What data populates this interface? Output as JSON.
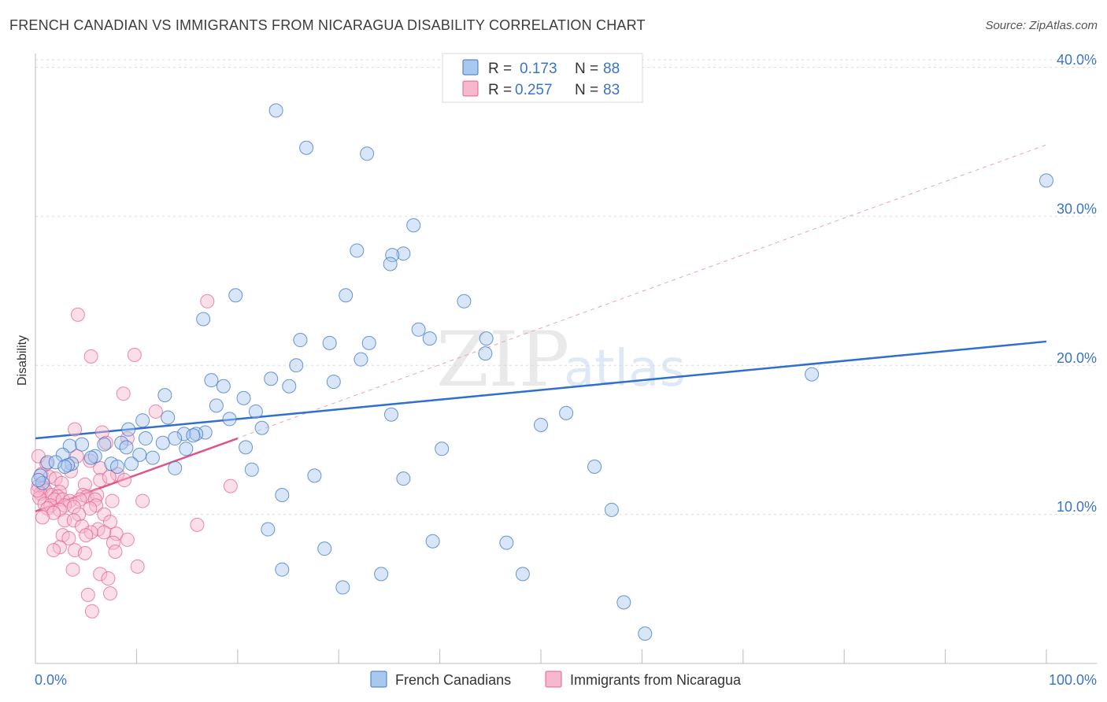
{
  "header": {
    "title": "FRENCH CANADIAN VS IMMIGRANTS FROM NICARAGUA DISABILITY CORRELATION CHART",
    "source": "Source: ZipAtlas.com"
  },
  "chart_data": {
    "type": "scatter",
    "title": "FRENCH CANADIAN VS IMMIGRANTS FROM NICARAGUA DISABILITY CORRELATION CHART",
    "xlabel": "",
    "ylabel": "Disability",
    "xlim": [
      0,
      100
    ],
    "ylim": [
      0,
      40.5
    ],
    "x_tick_labels": [
      "0.0%",
      "100.0%"
    ],
    "y_ticks": [
      10,
      20,
      30,
      40
    ],
    "y_tick_labels": [
      "10.0%",
      "20.0%",
      "30.0%",
      "40.0%"
    ],
    "grid": true,
    "legend_position": "top-center",
    "watermark": "ZIPatlas",
    "colors": {
      "blue": "#3a74c4",
      "blue_fill": "#a9c8f0",
      "pink": "#e8608e",
      "pink_fill": "#f6b8cc"
    },
    "stats": [
      {
        "r_label": "R =",
        "r": "0.173",
        "n_label": "N =",
        "n": "88"
      },
      {
        "r_label": "R =",
        "r": "0.257",
        "n_label": "N =",
        "n": "83"
      }
    ],
    "series": [
      {
        "name": "French Canadians",
        "color": "#3a74c4",
        "trend": {
          "x": [
            0,
            100
          ],
          "y": [
            15.1,
            21.6
          ],
          "style": "solid"
        },
        "points": [
          [
            23.8,
            37.1
          ],
          [
            26.8,
            34.6
          ],
          [
            32.8,
            34.2
          ],
          [
            100,
            32.4
          ],
          [
            37.4,
            29.4
          ],
          [
            31.8,
            27.7
          ],
          [
            36.4,
            27.5
          ],
          [
            35.3,
            27.4
          ],
          [
            35.1,
            26.8
          ],
          [
            19.8,
            24.7
          ],
          [
            30.7,
            24.7
          ],
          [
            42.4,
            24.3
          ],
          [
            16.6,
            23.1
          ],
          [
            37.9,
            22.4
          ],
          [
            39.0,
            21.8
          ],
          [
            26.2,
            21.7
          ],
          [
            29.1,
            21.5
          ],
          [
            33.0,
            21.5
          ],
          [
            44.6,
            21.8
          ],
          [
            44.5,
            20.8
          ],
          [
            32.2,
            20.4
          ],
          [
            25.8,
            20.0
          ],
          [
            76.8,
            19.4
          ],
          [
            23.3,
            19.1
          ],
          [
            17.4,
            19.0
          ],
          [
            29.5,
            18.9
          ],
          [
            18.6,
            18.6
          ],
          [
            25.1,
            18.6
          ],
          [
            12.8,
            18.0
          ],
          [
            20.6,
            17.8
          ],
          [
            17.9,
            17.3
          ],
          [
            21.8,
            16.9
          ],
          [
            35.2,
            16.7
          ],
          [
            52.5,
            16.8
          ],
          [
            13.1,
            16.5
          ],
          [
            19.2,
            16.4
          ],
          [
            10.6,
            16.3
          ],
          [
            50.0,
            16.0
          ],
          [
            22.4,
            15.8
          ],
          [
            9.2,
            15.7
          ],
          [
            16.8,
            15.5
          ],
          [
            14.7,
            15.4
          ],
          [
            15.9,
            15.4
          ],
          [
            15.6,
            15.3
          ],
          [
            13.8,
            15.1
          ],
          [
            10.9,
            15.1
          ],
          [
            6.8,
            14.7
          ],
          [
            12.6,
            14.8
          ],
          [
            3.4,
            14.6
          ],
          [
            4.6,
            14.7
          ],
          [
            8.5,
            14.8
          ],
          [
            9.0,
            14.5
          ],
          [
            20.8,
            14.5
          ],
          [
            40.2,
            14.4
          ],
          [
            14.9,
            14.4
          ],
          [
            5.9,
            13.9
          ],
          [
            10.3,
            14.0
          ],
          [
            2.7,
            14.0
          ],
          [
            5.5,
            13.8
          ],
          [
            11.6,
            13.8
          ],
          [
            1.2,
            13.5
          ],
          [
            2.0,
            13.5
          ],
          [
            3.6,
            13.4
          ],
          [
            7.5,
            13.4
          ],
          [
            9.5,
            13.4
          ],
          [
            3.2,
            13.3
          ],
          [
            2.9,
            13.2
          ],
          [
            8.1,
            13.2
          ],
          [
            55.3,
            13.2
          ],
          [
            13.8,
            13.1
          ],
          [
            21.4,
            13.0
          ],
          [
            0.5,
            12.6
          ],
          [
            27.6,
            12.6
          ],
          [
            36.4,
            12.4
          ],
          [
            0.7,
            12.1
          ],
          [
            24.4,
            11.3
          ],
          [
            57.0,
            10.3
          ],
          [
            23.0,
            9.0
          ],
          [
            39.3,
            8.2
          ],
          [
            28.6,
            7.7
          ],
          [
            46.6,
            8.1
          ],
          [
            24.4,
            6.3
          ],
          [
            34.2,
            6.0
          ],
          [
            48.2,
            6.0
          ],
          [
            30.4,
            5.1
          ],
          [
            58.2,
            4.1
          ],
          [
            60.3,
            2.0
          ],
          [
            0.3,
            12.3
          ]
        ]
      },
      {
        "name": "Immigrants from Nicaragua",
        "color": "#e8608e",
        "trend": {
          "x": [
            0,
            20
          ],
          "y": [
            10.2,
            15.1
          ],
          "style": "solid"
        },
        "trend_extended": {
          "x": [
            0,
            100
          ],
          "y": [
            10.2,
            34.8
          ],
          "style": "dashed"
        },
        "points": [
          [
            17.0,
            24.3
          ],
          [
            4.2,
            23.4
          ],
          [
            9.8,
            20.7
          ],
          [
            5.5,
            20.6
          ],
          [
            8.7,
            18.1
          ],
          [
            11.9,
            16.9
          ],
          [
            3.9,
            15.7
          ],
          [
            6.6,
            15.5
          ],
          [
            9.1,
            15.1
          ],
          [
            7.0,
            14.8
          ],
          [
            0.3,
            13.9
          ],
          [
            4.1,
            13.9
          ],
          [
            5.4,
            13.6
          ],
          [
            1.1,
            13.4
          ],
          [
            6.4,
            13.1
          ],
          [
            3.5,
            12.9
          ],
          [
            0.6,
            12.7
          ],
          [
            8.1,
            12.7
          ],
          [
            1.4,
            12.5
          ],
          [
            2.0,
            12.4
          ],
          [
            6.4,
            12.3
          ],
          [
            7.3,
            12.5
          ],
          [
            8.8,
            12.3
          ],
          [
            2.6,
            12.1
          ],
          [
            4.9,
            12.0
          ],
          [
            0.3,
            11.9
          ],
          [
            19.3,
            11.9
          ],
          [
            0.8,
            11.8
          ],
          [
            1.0,
            11.6
          ],
          [
            2.4,
            11.5
          ],
          [
            0.5,
            11.4
          ],
          [
            1.6,
            11.3
          ],
          [
            2.2,
            11.2
          ],
          [
            4.7,
            11.3
          ],
          [
            5.1,
            11.2
          ],
          [
            6.1,
            11.3
          ],
          [
            0.4,
            11.1
          ],
          [
            1.9,
            11.0
          ],
          [
            2.7,
            11.0
          ],
          [
            3.4,
            10.9
          ],
          [
            4.4,
            11.0
          ],
          [
            5.9,
            11.0
          ],
          [
            7.6,
            10.9
          ],
          [
            10.6,
            10.9
          ],
          [
            0.9,
            10.7
          ],
          [
            1.5,
            10.6
          ],
          [
            2.9,
            10.6
          ],
          [
            3.8,
            10.5
          ],
          [
            6.0,
            10.6
          ],
          [
            1.2,
            10.4
          ],
          [
            2.4,
            10.3
          ],
          [
            5.4,
            10.4
          ],
          [
            1.8,
            10.1
          ],
          [
            4.3,
            10.0
          ],
          [
            6.8,
            10.0
          ],
          [
            0.7,
            9.8
          ],
          [
            2.9,
            9.6
          ],
          [
            3.8,
            9.6
          ],
          [
            7.4,
            9.5
          ],
          [
            16.0,
            9.3
          ],
          [
            4.6,
            9.2
          ],
          [
            6.2,
            9.0
          ],
          [
            8.0,
            8.7
          ],
          [
            5.5,
            8.8
          ],
          [
            2.7,
            8.6
          ],
          [
            3.3,
            8.4
          ],
          [
            5.0,
            8.6
          ],
          [
            6.8,
            8.8
          ],
          [
            7.7,
            8.1
          ],
          [
            9.1,
            8.3
          ],
          [
            2.4,
            7.8
          ],
          [
            3.9,
            7.6
          ],
          [
            4.9,
            7.4
          ],
          [
            1.8,
            7.6
          ],
          [
            7.9,
            7.5
          ],
          [
            10.1,
            6.5
          ],
          [
            3.7,
            6.3
          ],
          [
            6.4,
            6.0
          ],
          [
            7.2,
            5.7
          ],
          [
            5.2,
            4.6
          ],
          [
            7.4,
            4.7
          ],
          [
            5.6,
            3.5
          ],
          [
            0.2,
            11.6
          ]
        ]
      }
    ]
  },
  "legend": {
    "entries": [
      "French Canadians",
      "Immigrants from Nicaragua"
    ]
  }
}
